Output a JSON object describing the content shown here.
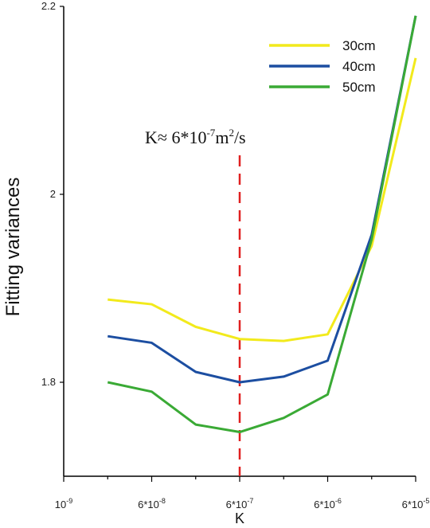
{
  "chart_data": {
    "type": "line",
    "xlabel": "K",
    "ylabel": "Fitting variances",
    "ylim": [
      1.7,
      2.2
    ],
    "yticks": [
      {
        "value": 1.8,
        "label": "1.8"
      },
      {
        "value": 2.0,
        "label": "2"
      },
      {
        "value": 2.2,
        "label": "2.2"
      }
    ],
    "xticks": [
      {
        "pos": 0,
        "base": "10",
        "exp": "-9"
      },
      {
        "pos": 2,
        "base": "6*10",
        "exp": "-8"
      },
      {
        "pos": 4,
        "base": "6*10",
        "exp": "-7"
      },
      {
        "pos": 6,
        "base": "6*10",
        "exp": "-6"
      },
      {
        "pos": 8,
        "base": "6*10",
        "exp": "-5"
      }
    ],
    "x": [
      1,
      2,
      3,
      4,
      5,
      6,
      7,
      8
    ],
    "series": [
      {
        "name": "30cm",
        "color": "#f2ea1c",
        "values": [
          1.888,
          1.883,
          1.859,
          1.846,
          1.844,
          1.851,
          1.945,
          2.145
        ]
      },
      {
        "name": "40cm",
        "color": "#1c4ea1",
        "values": [
          1.849,
          1.842,
          1.811,
          1.8,
          1.806,
          1.823,
          1.957,
          2.19
        ]
      },
      {
        "name": "50cm",
        "color": "#3aaa35",
        "values": [
          1.8,
          1.79,
          1.755,
          1.747,
          1.762,
          1.787,
          1.952,
          2.19
        ]
      }
    ],
    "annotation": {
      "x_pos": 4,
      "text_main": "K≈ 6*10",
      "text_exp": "-7",
      "text_unit": "m",
      "text_unit_exp": "2",
      "text_tail": "/s",
      "line_color": "#e02020"
    },
    "legend_position": "top-right",
    "grid": false
  }
}
